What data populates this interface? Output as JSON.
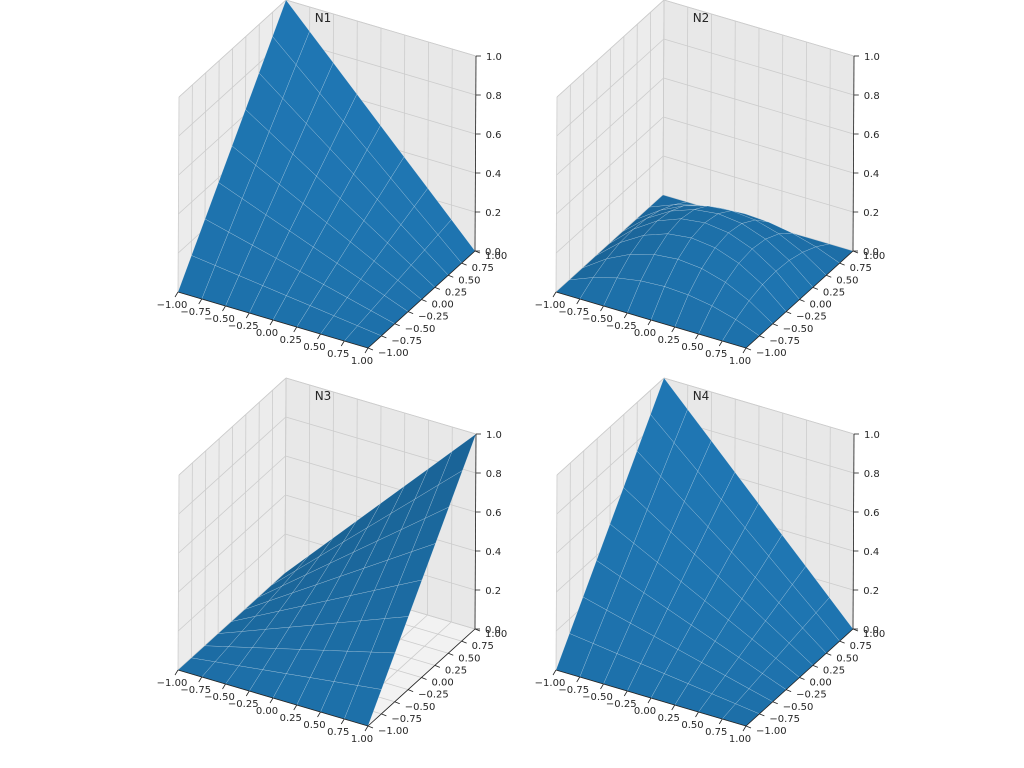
{
  "colors": {
    "surface": "#1f77b4",
    "pane": "#f2f2f2",
    "grid": "#cccccc",
    "axis": "#222222",
    "text": "#262626"
  },
  "chart_data": [
    {
      "type": "surface",
      "title": "N1",
      "x_ticks": [
        "−1.00",
        "−0.75",
        "−0.50",
        "−0.25",
        "0.00",
        "0.25",
        "0.50",
        "0.75",
        "1.00"
      ],
      "y_ticks": [
        "−1.00",
        "−0.75",
        "−0.50",
        "−0.25",
        "0.00",
        "0.25",
        "0.50",
        "0.75",
        "1.00"
      ],
      "z_ticks": [
        "0.0",
        "0.2",
        "0.4",
        "0.6",
        "0.8",
        "1.0"
      ],
      "xlim": [
        -1,
        1
      ],
      "ylim": [
        -1,
        1
      ],
      "zlim": [
        0,
        1
      ],
      "x": [
        -1.0,
        -0.75,
        -0.5,
        -0.25,
        0.0,
        0.25,
        0.5,
        0.75,
        1.0
      ],
      "y": [
        -1.0,
        -0.75,
        -0.5,
        -0.25,
        0.0,
        0.25,
        0.5,
        0.75,
        1.0
      ],
      "corner_values": {
        "x=-1,y=-1": 0.0,
        "x=1,y=-1": 0.0,
        "x=1,y=1": 0.0,
        "x=-1,y=1": 1.0
      },
      "grid": true
    },
    {
      "type": "surface",
      "title": "N2",
      "x_ticks": [
        "−1.00",
        "−0.75",
        "−0.50",
        "−0.25",
        "0.00",
        "0.25",
        "0.50",
        "0.75",
        "1.00"
      ],
      "y_ticks": [
        "−1.00",
        "−0.75",
        "−0.50",
        "−0.25",
        "0.00",
        "0.25",
        "0.50",
        "0.75",
        "1.00"
      ],
      "z_ticks": [
        "0.0",
        "0.2",
        "0.4",
        "0.6",
        "0.8",
        "1.0"
      ],
      "xlim": [
        -1,
        1
      ],
      "ylim": [
        -1,
        1
      ],
      "zlim": [
        0,
        1
      ],
      "x": [
        -1.0,
        -0.75,
        -0.5,
        -0.25,
        0.0,
        0.25,
        0.5,
        0.75,
        1.0
      ],
      "y": [
        -1.0,
        -0.75,
        -0.5,
        -0.25,
        0.0,
        0.25,
        0.5,
        0.75,
        1.0
      ],
      "corner_values": {
        "x=-1,y=-1": 0.0,
        "x=1,y=-1": 0.0,
        "x=1,y=1": 0.0,
        "x=-1,y=1": 0.0
      },
      "peak_z": 0.25,
      "grid": true
    },
    {
      "type": "surface",
      "title": "N3",
      "x_ticks": [
        "−1.00",
        "−0.75",
        "−0.50",
        "−0.25",
        "0.00",
        "0.25",
        "0.50",
        "0.75",
        "1.00"
      ],
      "y_ticks": [
        "−1.00",
        "−0.75",
        "−0.50",
        "−0.25",
        "0.00",
        "0.25",
        "0.50",
        "0.75",
        "1.00"
      ],
      "z_ticks": [
        "0.0",
        "0.2",
        "0.4",
        "0.6",
        "0.8",
        "1.0"
      ],
      "xlim": [
        -1,
        1
      ],
      "ylim": [
        -1,
        1
      ],
      "zlim": [
        0,
        1
      ],
      "x": [
        -1.0,
        -0.75,
        -0.5,
        -0.25,
        0.0,
        0.25,
        0.5,
        0.75,
        1.0
      ],
      "y": [
        -1.0,
        -0.75,
        -0.5,
        -0.25,
        0.0,
        0.25,
        0.5,
        0.75,
        1.0
      ],
      "corner_values": {
        "x=-1,y=-1": 0.0,
        "x=1,y=-1": 0.0,
        "x=1,y=1": 1.0,
        "x=-1,y=1": 0.0
      },
      "grid": true
    },
    {
      "type": "surface",
      "title": "N4",
      "x_ticks": [
        "−1.00",
        "−0.75",
        "−0.50",
        "−0.25",
        "0.00",
        "0.25",
        "0.50",
        "0.75",
        "1.00"
      ],
      "y_ticks": [
        "−1.00",
        "−0.75",
        "−0.50",
        "−0.25",
        "0.00",
        "0.25",
        "0.50",
        "0.75",
        "1.00"
      ],
      "z_ticks": [
        "0.0",
        "0.2",
        "0.4",
        "0.6",
        "0.8",
        "1.0"
      ],
      "xlim": [
        -1,
        1
      ],
      "ylim": [
        -1,
        1
      ],
      "zlim": [
        0,
        1
      ],
      "x": [
        -1.0,
        -0.75,
        -0.5,
        -0.25,
        0.0,
        0.25,
        0.5,
        0.75,
        1.0
      ],
      "y": [
        -1.0,
        -0.75,
        -0.5,
        -0.25,
        0.0,
        0.25,
        0.5,
        0.75,
        1.0
      ],
      "corner_values": {
        "x=-1,y=-1": 0.0,
        "x=1,y=-1": 0.0,
        "x=1,y=1": 0.0,
        "x=-1,y=1": 1.0
      },
      "grid": true
    }
  ]
}
